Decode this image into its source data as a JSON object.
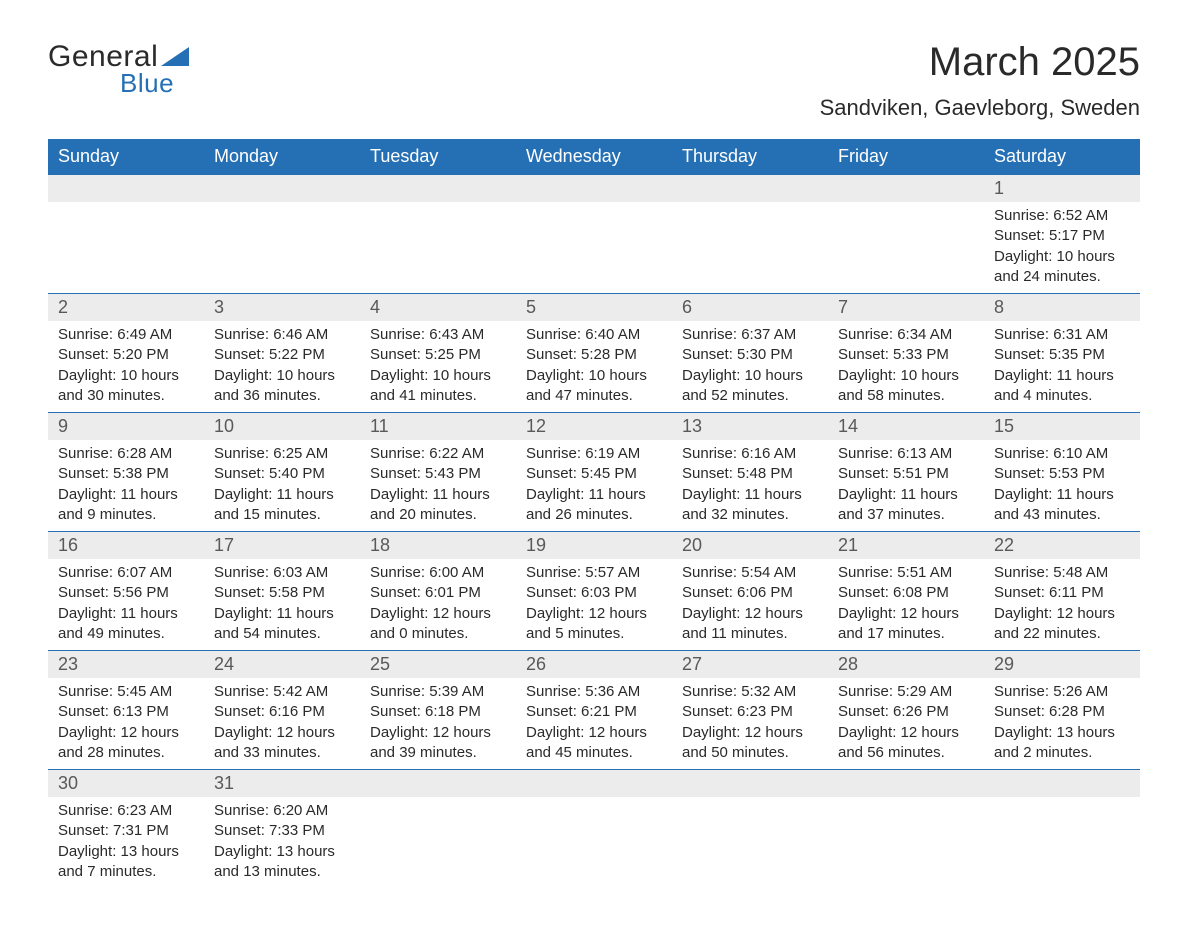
{
  "logo": {
    "text_general": "General",
    "text_blue": "Blue",
    "triangle_color": "#2570b5"
  },
  "header": {
    "month_title": "March 2025",
    "location": "Sandviken, Gaevleborg, Sweden"
  },
  "colors": {
    "header_bg": "#2570b5",
    "header_text": "#ffffff",
    "day_num_bg": "#ececec",
    "day_num_text": "#595959",
    "body_text": "#2a2a2a",
    "border": "#2570b5"
  },
  "day_headers": [
    "Sunday",
    "Monday",
    "Tuesday",
    "Wednesday",
    "Thursday",
    "Friday",
    "Saturday"
  ],
  "weeks": [
    [
      {
        "day": "",
        "lines": []
      },
      {
        "day": "",
        "lines": []
      },
      {
        "day": "",
        "lines": []
      },
      {
        "day": "",
        "lines": []
      },
      {
        "day": "",
        "lines": []
      },
      {
        "day": "",
        "lines": []
      },
      {
        "day": "1",
        "lines": [
          "Sunrise: 6:52 AM",
          "Sunset: 5:17 PM",
          "Daylight: 10 hours",
          "and 24 minutes."
        ]
      }
    ],
    [
      {
        "day": "2",
        "lines": [
          "Sunrise: 6:49 AM",
          "Sunset: 5:20 PM",
          "Daylight: 10 hours",
          "and 30 minutes."
        ]
      },
      {
        "day": "3",
        "lines": [
          "Sunrise: 6:46 AM",
          "Sunset: 5:22 PM",
          "Daylight: 10 hours",
          "and 36 minutes."
        ]
      },
      {
        "day": "4",
        "lines": [
          "Sunrise: 6:43 AM",
          "Sunset: 5:25 PM",
          "Daylight: 10 hours",
          "and 41 minutes."
        ]
      },
      {
        "day": "5",
        "lines": [
          "Sunrise: 6:40 AM",
          "Sunset: 5:28 PM",
          "Daylight: 10 hours",
          "and 47 minutes."
        ]
      },
      {
        "day": "6",
        "lines": [
          "Sunrise: 6:37 AM",
          "Sunset: 5:30 PM",
          "Daylight: 10 hours",
          "and 52 minutes."
        ]
      },
      {
        "day": "7",
        "lines": [
          "Sunrise: 6:34 AM",
          "Sunset: 5:33 PM",
          "Daylight: 10 hours",
          "and 58 minutes."
        ]
      },
      {
        "day": "8",
        "lines": [
          "Sunrise: 6:31 AM",
          "Sunset: 5:35 PM",
          "Daylight: 11 hours",
          "and 4 minutes."
        ]
      }
    ],
    [
      {
        "day": "9",
        "lines": [
          "Sunrise: 6:28 AM",
          "Sunset: 5:38 PM",
          "Daylight: 11 hours",
          "and 9 minutes."
        ]
      },
      {
        "day": "10",
        "lines": [
          "Sunrise: 6:25 AM",
          "Sunset: 5:40 PM",
          "Daylight: 11 hours",
          "and 15 minutes."
        ]
      },
      {
        "day": "11",
        "lines": [
          "Sunrise: 6:22 AM",
          "Sunset: 5:43 PM",
          "Daylight: 11 hours",
          "and 20 minutes."
        ]
      },
      {
        "day": "12",
        "lines": [
          "Sunrise: 6:19 AM",
          "Sunset: 5:45 PM",
          "Daylight: 11 hours",
          "and 26 minutes."
        ]
      },
      {
        "day": "13",
        "lines": [
          "Sunrise: 6:16 AM",
          "Sunset: 5:48 PM",
          "Daylight: 11 hours",
          "and 32 minutes."
        ]
      },
      {
        "day": "14",
        "lines": [
          "Sunrise: 6:13 AM",
          "Sunset: 5:51 PM",
          "Daylight: 11 hours",
          "and 37 minutes."
        ]
      },
      {
        "day": "15",
        "lines": [
          "Sunrise: 6:10 AM",
          "Sunset: 5:53 PM",
          "Daylight: 11 hours",
          "and 43 minutes."
        ]
      }
    ],
    [
      {
        "day": "16",
        "lines": [
          "Sunrise: 6:07 AM",
          "Sunset: 5:56 PM",
          "Daylight: 11 hours",
          "and 49 minutes."
        ]
      },
      {
        "day": "17",
        "lines": [
          "Sunrise: 6:03 AM",
          "Sunset: 5:58 PM",
          "Daylight: 11 hours",
          "and 54 minutes."
        ]
      },
      {
        "day": "18",
        "lines": [
          "Sunrise: 6:00 AM",
          "Sunset: 6:01 PM",
          "Daylight: 12 hours",
          "and 0 minutes."
        ]
      },
      {
        "day": "19",
        "lines": [
          "Sunrise: 5:57 AM",
          "Sunset: 6:03 PM",
          "Daylight: 12 hours",
          "and 5 minutes."
        ]
      },
      {
        "day": "20",
        "lines": [
          "Sunrise: 5:54 AM",
          "Sunset: 6:06 PM",
          "Daylight: 12 hours",
          "and 11 minutes."
        ]
      },
      {
        "day": "21",
        "lines": [
          "Sunrise: 5:51 AM",
          "Sunset: 6:08 PM",
          "Daylight: 12 hours",
          "and 17 minutes."
        ]
      },
      {
        "day": "22",
        "lines": [
          "Sunrise: 5:48 AM",
          "Sunset: 6:11 PM",
          "Daylight: 12 hours",
          "and 22 minutes."
        ]
      }
    ],
    [
      {
        "day": "23",
        "lines": [
          "Sunrise: 5:45 AM",
          "Sunset: 6:13 PM",
          "Daylight: 12 hours",
          "and 28 minutes."
        ]
      },
      {
        "day": "24",
        "lines": [
          "Sunrise: 5:42 AM",
          "Sunset: 6:16 PM",
          "Daylight: 12 hours",
          "and 33 minutes."
        ]
      },
      {
        "day": "25",
        "lines": [
          "Sunrise: 5:39 AM",
          "Sunset: 6:18 PM",
          "Daylight: 12 hours",
          "and 39 minutes."
        ]
      },
      {
        "day": "26",
        "lines": [
          "Sunrise: 5:36 AM",
          "Sunset: 6:21 PM",
          "Daylight: 12 hours",
          "and 45 minutes."
        ]
      },
      {
        "day": "27",
        "lines": [
          "Sunrise: 5:32 AM",
          "Sunset: 6:23 PM",
          "Daylight: 12 hours",
          "and 50 minutes."
        ]
      },
      {
        "day": "28",
        "lines": [
          "Sunrise: 5:29 AM",
          "Sunset: 6:26 PM",
          "Daylight: 12 hours",
          "and 56 minutes."
        ]
      },
      {
        "day": "29",
        "lines": [
          "Sunrise: 5:26 AM",
          "Sunset: 6:28 PM",
          "Daylight: 13 hours",
          "and 2 minutes."
        ]
      }
    ],
    [
      {
        "day": "30",
        "lines": [
          "Sunrise: 6:23 AM",
          "Sunset: 7:31 PM",
          "Daylight: 13 hours",
          "and 7 minutes."
        ]
      },
      {
        "day": "31",
        "lines": [
          "Sunrise: 6:20 AM",
          "Sunset: 7:33 PM",
          "Daylight: 13 hours",
          "and 13 minutes."
        ]
      },
      {
        "day": "",
        "lines": []
      },
      {
        "day": "",
        "lines": []
      },
      {
        "day": "",
        "lines": []
      },
      {
        "day": "",
        "lines": []
      },
      {
        "day": "",
        "lines": []
      }
    ]
  ]
}
